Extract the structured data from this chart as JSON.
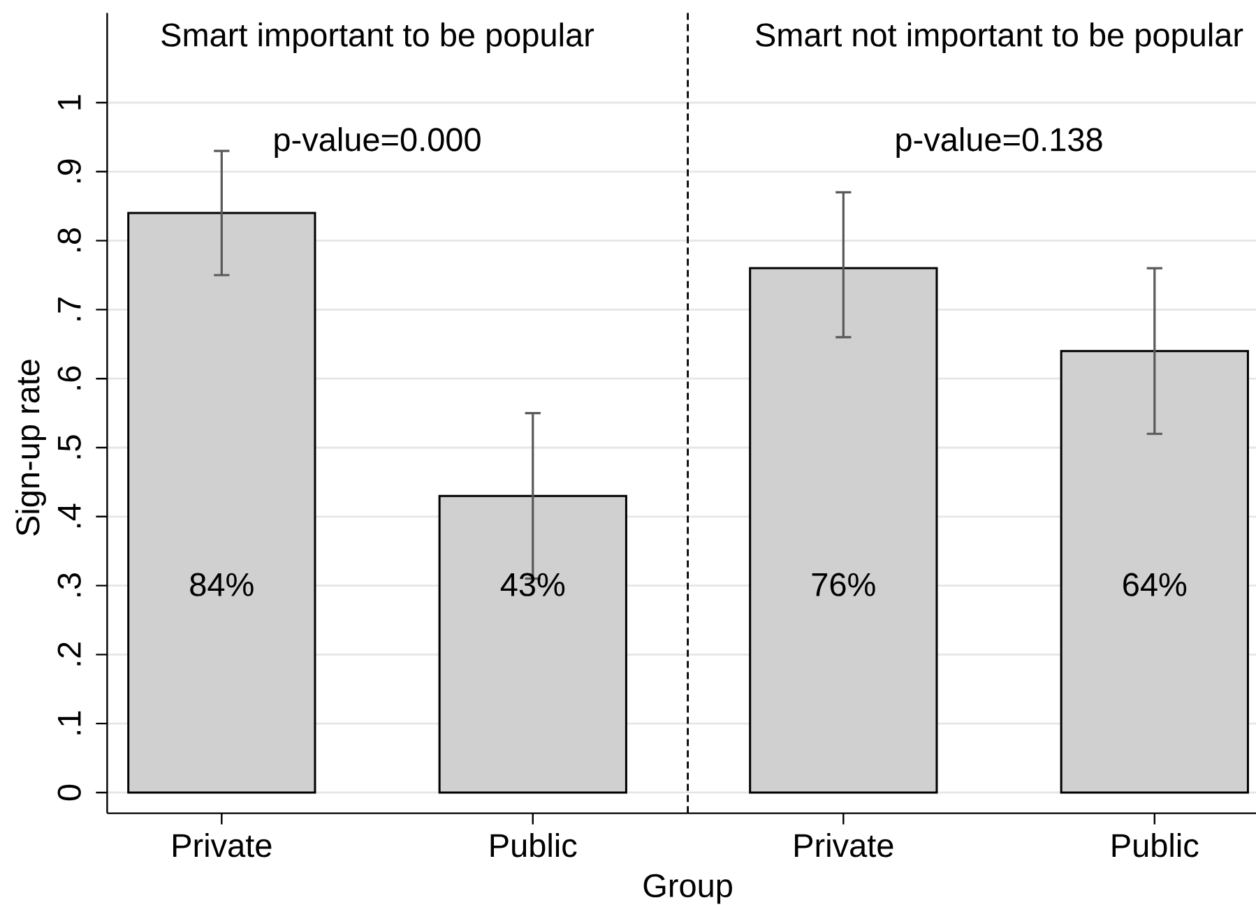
{
  "chart_data": [
    {
      "type": "bar",
      "title": "Smart important to be popular",
      "xlabel": "Group",
      "ylabel": "Sign-up rate",
      "categories": [
        "Private",
        "Public"
      ],
      "values": [
        0.84,
        0.43
      ],
      "errors": [
        [
          0.75,
          0.93
        ],
        [
          0.31,
          0.55
        ]
      ],
      "value_labels": [
        "84%",
        "43%"
      ],
      "color": "#d0d0d0",
      "ylim": [
        -0.03,
        1.13
      ],
      "yticks": [
        0,
        {
          "value": 0.1,
          "label": ".1"
        },
        {
          "value": 0.2,
          "label": ".2"
        },
        {
          "value": 0.3,
          "label": ".3"
        },
        {
          "value": 0.4,
          "label": ".4"
        },
        {
          "value": 0.5,
          "label": ".5"
        },
        {
          "value": 0.6,
          "label": ".6"
        },
        {
          "value": 0.7,
          "label": ".7"
        },
        {
          "value": 0.8,
          "label": ".8"
        },
        {
          "value": 0.9,
          "label": ".9"
        },
        1
      ],
      "grid": "y",
      "annotations": [
        "p-value=0.000"
      ]
    },
    {
      "type": "bar",
      "title": "Smart not important to be popular",
      "categories": [
        "Private",
        "Public"
      ],
      "values": [
        0.76,
        0.64
      ],
      "errors": [
        [
          0.66,
          0.87
        ],
        [
          0.52,
          0.76
        ]
      ],
      "value_labels": [
        "76%",
        "64%"
      ],
      "color": "#d0d0d0",
      "ylim": [
        -0.03,
        1.13
      ],
      "yticks": [
        0,
        0.1,
        0.2,
        0.3,
        0.4,
        0.5,
        0.6,
        0.7,
        0.8,
        0.9,
        1
      ],
      "grid": "y",
      "tick_labels": "x",
      "annotations": [
        "p-value=0.138"
      ]
    }
  ]
}
